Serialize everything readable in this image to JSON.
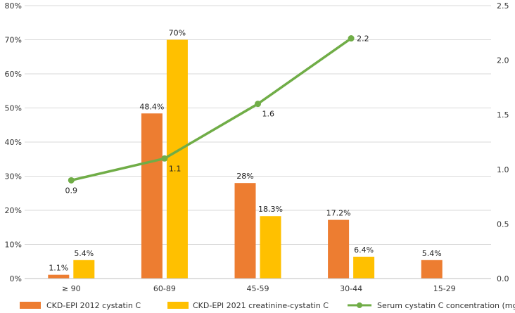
{
  "chart_data": {
    "type": "bar",
    "categories": [
      "≥ 90",
      "60-89",
      "45-59",
      "30-44",
      "15-29"
    ],
    "series": [
      {
        "name": "CKD-EPI 2012 cystatin C",
        "kind": "bar",
        "axis": "left",
        "color": "#ED7D31",
        "values": [
          1.1,
          48.4,
          28,
          17.2,
          5.4
        ],
        "labels": [
          "1.1%",
          "48.4%",
          "28%",
          "17.2%",
          "5.4%"
        ]
      },
      {
        "name": "CKD-EPI 2021 creatinine-cystatin C",
        "kind": "bar",
        "axis": "left",
        "color": "#FFC000",
        "values": [
          5.4,
          70,
          18.3,
          6.4,
          null
        ],
        "labels": [
          "5.4%",
          "70%",
          "18.3%",
          "6.4%",
          null
        ]
      },
      {
        "name": "Serum cystatin C concentration (mg/L)",
        "kind": "line",
        "axis": "right",
        "color": "#70AD47",
        "values": [
          0.9,
          1.1,
          1.6,
          2.2,
          null
        ],
        "labels": [
          "0.9",
          "1.1",
          "1.6",
          "2.2",
          null
        ]
      }
    ],
    "ylim": [
      0,
      80
    ],
    "y_ticks": [
      "0%",
      "10%",
      "20%",
      "30%",
      "40%",
      "50%",
      "60%",
      "70%",
      "80%"
    ],
    "y2lim": [
      0,
      2.5
    ],
    "y2_ticks": [
      "0.0",
      "0.5",
      "1.0",
      "1.5",
      "2.0",
      "2.5"
    ],
    "grid": true,
    "legend": "bottom"
  }
}
